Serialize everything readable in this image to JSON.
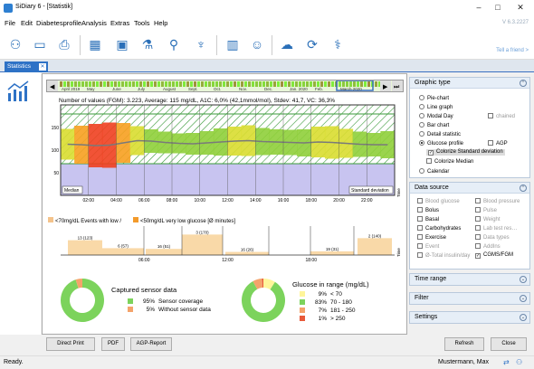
{
  "window": {
    "title": "SiDiary 6 - [Statistik]"
  },
  "menu": {
    "items": [
      "File",
      "Edit",
      "Diabetesprofile",
      "Analysis",
      "Extras",
      "Tools",
      "Help"
    ],
    "version": "V 6.3.2227"
  },
  "toolbar": {
    "tell_friend": "Tell a friend >"
  },
  "tab": {
    "label": "Statistics"
  },
  "timeline": {
    "months": [
      "April 2019",
      "May",
      "June",
      "July",
      "August",
      "Sept.",
      "Oct.",
      "Nov.",
      "Dec.",
      "Jan. 2020",
      "Feb.",
      "March 2020"
    ]
  },
  "chart1": {
    "header": "Number of values (FGM): 3.223, Average: 115 mg/dL, A1C: 6,0% (42,1mmol/mol), Stdev: 41,7, VC: 36,3%",
    "y_ticks": [
      "150",
      "100",
      "50"
    ],
    "x_ticks": [
      "02:00",
      "04:00",
      "06:00",
      "08:00",
      "10:00",
      "12:00",
      "14:00",
      "16:00",
      "18:00",
      "20:00",
      "22:00"
    ],
    "legend_left": "Median",
    "legend_right": "Standard deviation",
    "time_label": "Time",
    "median": [
      113,
      112,
      110,
      111,
      116,
      121,
      120,
      117,
      115,
      114,
      116,
      118,
      120,
      121,
      119,
      118,
      117,
      116,
      118,
      117,
      115,
      113,
      112,
      112
    ],
    "spread": [
      34,
      42,
      48,
      50,
      44,
      32,
      26,
      24,
      22,
      24,
      26,
      30,
      32,
      34,
      30,
      28,
      28,
      30,
      34,
      36,
      32,
      28,
      26,
      30
    ]
  },
  "chart2": {
    "legend_low": "<70mg/dL Events with low /",
    "legend_very_low": "<50mg/dL very low glucose [Ø minutes]",
    "x_ticks": [
      "06:00",
      "12:00",
      "18:00"
    ],
    "time_label": "Time",
    "bars": [
      {
        "label": "13 (123)",
        "value": 123
      },
      {
        "label": "6 (57)",
        "value": 57
      },
      {
        "label": "16 (51)",
        "value": 51
      },
      {
        "label": "3 (170)",
        "value": 170
      },
      {
        "label": "16 (26)",
        "value": 26
      },
      {
        "label": "19 (31)",
        "value": 31
      },
      {
        "label": "2 (140)",
        "value": 140
      }
    ]
  },
  "sensor": {
    "title": "Captured sensor data",
    "rows": [
      {
        "pct": "95%",
        "label": "Sensor coverage",
        "color": "#7cd35c"
      },
      {
        "pct": "5%",
        "label": "Without sensor data",
        "color": "#f4a36b"
      }
    ],
    "values": [
      95,
      5
    ]
  },
  "range": {
    "title": "Glucose in range (mg/dL)",
    "rows": [
      {
        "pct": "9%",
        "label": "< 70",
        "color": "#fff59a"
      },
      {
        "pct": "83%",
        "label": "70 - 180",
        "color": "#7cd35c"
      },
      {
        "pct": "7%",
        "label": "181 - 250",
        "color": "#f4a36b"
      },
      {
        "pct": "1%",
        "label": "> 250",
        "color": "#e85a3a"
      }
    ],
    "values": [
      9,
      83,
      7,
      1
    ]
  },
  "graphic_type": {
    "header": "Graphic type",
    "options": [
      "Pie-chart",
      "Line graph",
      "Modal Day",
      "Bar chart",
      "Detail statistic",
      "Glucose profile",
      "Calendar"
    ],
    "chained": "chained",
    "agp": "AGP",
    "colorize_std": "Colorize Standard deviation",
    "colorize_median": "Colorize Median"
  },
  "data_source": {
    "header": "Data source",
    "left": [
      "Blood glucose",
      "Bolus",
      "Basal",
      "Carbohydrates",
      "Exercise",
      "Event",
      "Ø-Total insulin/day"
    ],
    "right": [
      "Blood pressure",
      "Pulse",
      "Weight",
      "Lab test res…",
      "Data types",
      "AddIns",
      "CGMS/FGM"
    ]
  },
  "time_range": {
    "header": "Time range"
  },
  "filter": {
    "header": "Filter"
  },
  "settings": {
    "header": "Settings"
  },
  "buttons": {
    "direct_print": "Direct Print",
    "pdf": "PDF",
    "agp_report": "AGP-Report",
    "refresh": "Refresh",
    "close": "Close"
  },
  "status": {
    "left": "Ready.",
    "user": "Mustermann, Max"
  }
}
